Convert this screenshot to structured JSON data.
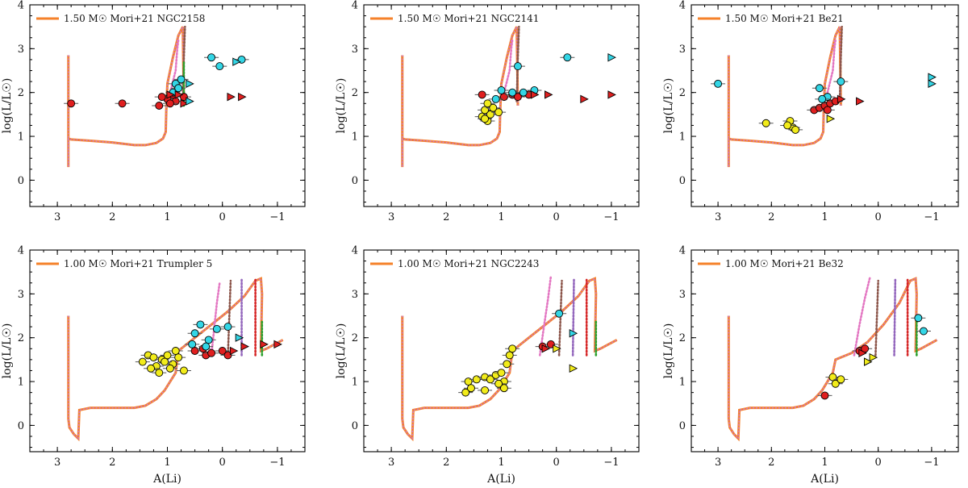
{
  "figure": {
    "shared_xlabel": "A(Li)",
    "shared_ylabel": "log(L/L☉)"
  },
  "colors": {
    "track": "#f5812a",
    "track_dash": "#c778d8",
    "pink": "#e377c2",
    "brown": "#8c564b",
    "purple": "#9467bd",
    "red": "#d62728",
    "green": "#2ca02c",
    "cyan": "#33d6e6",
    "yellow": "#f2ec1a",
    "redpt": "#e01f1f"
  },
  "chart_data": [
    {
      "type": "scatter",
      "legend": "1.50 M☉ Mori+21 NGC2158",
      "xlabel": "",
      "ylabel": "log(L/L☉)",
      "xlim": [
        3.5,
        -1.5
      ],
      "ylim": [
        -0.6,
        4
      ],
      "track": {
        "x": [
          2.8,
          2.8,
          2.8,
          2.75,
          2.4,
          2.0,
          1.6,
          1.4,
          1.2,
          1.08,
          1.03,
          1.02,
          1.0,
          0.9,
          0.8,
          0.72,
          0.7
        ],
        "y": [
          2.85,
          0.3,
          0.95,
          0.93,
          0.9,
          0.86,
          0.8,
          0.8,
          0.85,
          0.95,
          1.1,
          1.6,
          2.2,
          2.8,
          3.3,
          3.5,
          1.7
        ]
      },
      "dotted_tracks": [
        {
          "color": "pink",
          "x": [
            0.95,
            0.85,
            0.82,
            0.8
          ],
          "y": [
            2.0,
            2.5,
            3.0,
            3.2
          ]
        },
        {
          "color": "brown",
          "x": [
            0.72,
            0.7,
            0.68
          ],
          "y": [
            1.8,
            2.8,
            3.5
          ]
        },
        {
          "color": "green",
          "x": [
            0.7,
            0.7
          ],
          "y": [
            1.7,
            2.7
          ]
        }
      ],
      "cyan_circles": [
        [
          0.2,
          2.8
        ],
        [
          0.05,
          2.6
        ],
        [
          -0.35,
          2.75
        ],
        [
          0.85,
          2.2
        ],
        [
          0.8,
          2.1
        ],
        [
          0.75,
          2.3
        ],
        [
          0.9,
          2.0
        ]
      ],
      "yellow_circles": [],
      "red_circles": [
        [
          2.75,
          1.75
        ],
        [
          1.82,
          1.75
        ],
        [
          1.15,
          1.7
        ],
        [
          1.0,
          1.85
        ],
        [
          0.9,
          1.95
        ],
        [
          0.85,
          1.8
        ],
        [
          0.7,
          1.9
        ],
        [
          0.95,
          1.75
        ],
        [
          1.1,
          1.9
        ]
      ],
      "cyan_triangles": [
        [
          0.6,
          2.2
        ],
        [
          -0.25,
          2.7
        ],
        [
          0.6,
          1.8
        ]
      ],
      "yellow_triangles": [],
      "red_triangles": [
        [
          0.95,
          1.95
        ],
        [
          0.8,
          1.95
        ],
        [
          -0.15,
          1.9
        ],
        [
          -0.35,
          1.9
        ],
        [
          0.7,
          1.75
        ]
      ],
      "xticks": [
        "3",
        "2",
        "1",
        "0",
        "−1"
      ],
      "yticks": [
        "0",
        "1",
        "2",
        "3",
        "4"
      ]
    },
    {
      "type": "scatter",
      "legend": "1.50 M☉ Mori+21 NGC2141",
      "xlabel": "",
      "ylabel": "log(L/L☉)",
      "xlim": [
        3.5,
        -1.5
      ],
      "ylim": [
        -0.6,
        4
      ],
      "track": {
        "x": [
          2.8,
          2.8,
          2.8,
          2.75,
          2.4,
          2.0,
          1.6,
          1.4,
          1.2,
          1.08,
          1.03,
          1.02,
          1.0,
          0.9,
          0.8,
          0.72,
          0.7
        ],
        "y": [
          2.85,
          0.3,
          0.95,
          0.93,
          0.9,
          0.86,
          0.8,
          0.8,
          0.85,
          0.95,
          1.1,
          1.6,
          2.2,
          2.8,
          3.3,
          3.5,
          1.7
        ]
      },
      "dotted_tracks": [
        {
          "color": "pink",
          "x": [
            0.95,
            0.85,
            0.82,
            0.8
          ],
          "y": [
            2.0,
            2.5,
            3.0,
            3.2
          ]
        },
        {
          "color": "brown",
          "x": [
            0.72,
            0.7,
            0.68
          ],
          "y": [
            1.8,
            2.8,
            3.5
          ]
        }
      ],
      "cyan_circles": [
        [
          0.7,
          2.6
        ],
        [
          1.1,
          1.85
        ],
        [
          1.0,
          2.05
        ],
        [
          0.8,
          2.0
        ],
        [
          0.6,
          2.0
        ],
        [
          0.4,
          2.05
        ],
        [
          -0.2,
          2.8
        ]
      ],
      "yellow_circles": [
        [
          1.35,
          1.45
        ],
        [
          1.25,
          1.35
        ],
        [
          1.2,
          1.5
        ],
        [
          1.3,
          1.6
        ],
        [
          1.15,
          1.65
        ],
        [
          1.05,
          1.55
        ],
        [
          1.3,
          1.4
        ],
        [
          1.25,
          1.75
        ]
      ],
      "red_circles": [
        [
          1.35,
          1.95
        ],
        [
          0.95,
          1.9
        ],
        [
          0.8,
          1.95
        ],
        [
          0.7,
          1.9
        ],
        [
          0.5,
          1.95
        ]
      ],
      "cyan_triangles": [
        [
          -1.0,
          2.8
        ]
      ],
      "yellow_triangles": [],
      "red_triangles": [
        [
          0.15,
          1.95
        ],
        [
          -0.5,
          1.85
        ],
        [
          -1.0,
          1.95
        ],
        [
          0.4,
          1.95
        ]
      ],
      "xticks": [
        "3",
        "2",
        "1",
        "0",
        "−1"
      ],
      "yticks": [
        "0",
        "1",
        "2",
        "3",
        "4"
      ]
    },
    {
      "type": "scatter",
      "legend": "1.50 M☉ Mori+21 Be21",
      "xlabel": "",
      "ylabel": "log(L/L☉)",
      "xlim": [
        3.5,
        -1.5
      ],
      "ylim": [
        -0.6,
        4
      ],
      "track": {
        "x": [
          2.8,
          2.8,
          2.8,
          2.75,
          2.4,
          2.0,
          1.6,
          1.4,
          1.2,
          1.08,
          1.03,
          1.02,
          1.0,
          0.9,
          0.8,
          0.72,
          0.7
        ],
        "y": [
          2.85,
          0.3,
          0.95,
          0.93,
          0.9,
          0.86,
          0.8,
          0.8,
          0.85,
          0.95,
          1.1,
          1.6,
          2.2,
          2.8,
          3.3,
          3.5,
          1.7
        ]
      },
      "dotted_tracks": [
        {
          "color": "pink",
          "x": [
            0.95,
            0.85,
            0.82,
            0.8
          ],
          "y": [
            2.0,
            2.5,
            3.0,
            3.2
          ]
        },
        {
          "color": "brown",
          "x": [
            0.72,
            0.7,
            0.68
          ],
          "y": [
            1.8,
            2.8,
            3.5
          ]
        }
      ],
      "cyan_circles": [
        [
          3.0,
          2.2
        ],
        [
          1.1,
          2.1
        ],
        [
          0.95,
          1.9
        ],
        [
          0.7,
          2.25
        ],
        [
          1.05,
          1.85
        ]
      ],
      "yellow_circles": [
        [
          2.1,
          1.3
        ],
        [
          1.65,
          1.35
        ],
        [
          1.6,
          1.2
        ],
        [
          1.55,
          1.15
        ],
        [
          1.7,
          1.25
        ]
      ],
      "red_circles": [
        [
          1.2,
          1.6
        ],
        [
          1.1,
          1.65
        ],
        [
          1.0,
          1.7
        ],
        [
          0.9,
          1.75
        ],
        [
          0.8,
          1.8
        ],
        [
          0.95,
          1.6
        ]
      ],
      "cyan_triangles": [
        [
          -1.0,
          2.35
        ],
        [
          -1.0,
          2.2
        ]
      ],
      "yellow_triangles": [
        [
          0.9,
          1.4
        ]
      ],
      "red_triangles": [
        [
          0.7,
          1.85
        ],
        [
          0.35,
          1.8
        ]
      ],
      "xticks": [
        "3",
        "2",
        "1",
        "0",
        "−1"
      ],
      "yticks": [
        "0",
        "1",
        "2",
        "3",
        "4"
      ]
    },
    {
      "type": "scatter",
      "legend": "1.00 M☉ Mori+21 Trumpler 5",
      "xlabel": "A(Li)",
      "ylabel": "log(L/L☉)",
      "xlim": [
        3.5,
        -1.5
      ],
      "ylim": [
        -0.6,
        4
      ],
      "track": {
        "x": [
          2.8,
          2.8,
          2.78,
          2.7,
          2.62,
          2.6,
          2.4,
          2.0,
          1.6,
          1.4,
          1.2,
          1.05,
          0.95,
          0.85,
          0.8,
          0.5,
          0.2,
          -0.1,
          -0.4,
          -0.6,
          -0.7,
          -0.72,
          -0.7,
          -0.8,
          -0.95,
          -1.1
        ],
        "y": [
          2.5,
          0.15,
          -0.05,
          -0.2,
          -0.3,
          0.35,
          0.4,
          0.4,
          0.4,
          0.45,
          0.6,
          0.8,
          1.0,
          1.2,
          1.7,
          2.0,
          2.3,
          2.6,
          2.95,
          3.3,
          3.35,
          3.0,
          1.7,
          1.75,
          1.85,
          1.95
        ]
      },
      "dotted_tracks": [
        {
          "color": "pink",
          "x": [
            0.2,
            0.15,
            0.1,
            0.05
          ],
          "y": [
            1.6,
            2.2,
            2.8,
            3.25
          ]
        },
        {
          "color": "brown",
          "x": [
            -0.1,
            -0.15
          ],
          "y": [
            1.6,
            3.3
          ]
        },
        {
          "color": "purple",
          "x": [
            -0.35,
            -0.35
          ],
          "y": [
            1.6,
            3.35
          ]
        },
        {
          "color": "red",
          "x": [
            -0.6,
            -0.6
          ],
          "y": [
            1.6,
            3.35
          ]
        },
        {
          "color": "green",
          "x": [
            -0.72,
            -0.72
          ],
          "y": [
            1.6,
            2.4
          ]
        }
      ],
      "cyan_circles": [
        [
          0.5,
          2.1
        ],
        [
          0.4,
          2.3
        ],
        [
          0.55,
          1.85
        ],
        [
          0.25,
          1.95
        ],
        [
          0.1,
          2.2
        ],
        [
          -0.1,
          2.25
        ],
        [
          0.3,
          1.8
        ]
      ],
      "yellow_circles": [
        [
          1.45,
          1.45
        ],
        [
          1.35,
          1.6
        ],
        [
          1.25,
          1.55
        ],
        [
          1.2,
          1.35
        ],
        [
          1.1,
          1.5
        ],
        [
          1.0,
          1.6
        ],
        [
          0.9,
          1.4
        ],
        [
          0.8,
          1.55
        ],
        [
          0.7,
          1.25
        ],
        [
          1.15,
          1.2
        ],
        [
          1.3,
          1.3
        ],
        [
          0.95,
          1.3
        ],
        [
          0.85,
          1.7
        ],
        [
          1.05,
          1.45
        ]
      ],
      "red_circles": [
        [
          0.5,
          1.7
        ],
        [
          0.35,
          1.75
        ],
        [
          0.3,
          1.6
        ],
        [
          0.2,
          1.65
        ],
        [
          0.0,
          1.7
        ],
        [
          -0.1,
          1.6
        ]
      ],
      "cyan_triangles": [
        [
          -0.3,
          2.0
        ]
      ],
      "yellow_triangles": [],
      "red_triangles": [
        [
          -0.2,
          1.7
        ],
        [
          -0.4,
          1.8
        ],
        [
          -0.75,
          1.85
        ],
        [
          -1.0,
          1.85
        ]
      ],
      "xticks": [
        "3",
        "2",
        "1",
        "0",
        "−1"
      ],
      "yticks": [
        "0",
        "1",
        "2",
        "3",
        "4"
      ]
    },
    {
      "type": "scatter",
      "legend": "1.00 M☉ Mori+21 NGC2243",
      "xlabel": "A(Li)",
      "ylabel": "log(L/L☉)",
      "xlim": [
        3.5,
        -1.5
      ],
      "ylim": [
        -0.6,
        4
      ],
      "track": {
        "x": [
          2.8,
          2.8,
          2.78,
          2.7,
          2.62,
          2.6,
          2.4,
          2.0,
          1.6,
          1.4,
          1.2,
          1.05,
          0.95,
          0.85,
          0.8,
          0.5,
          0.2,
          -0.1,
          -0.4,
          -0.6,
          -0.7,
          -0.72,
          -0.7,
          -0.8,
          -0.95,
          -1.1
        ],
        "y": [
          2.5,
          0.15,
          -0.05,
          -0.2,
          -0.3,
          0.35,
          0.4,
          0.4,
          0.4,
          0.45,
          0.6,
          0.8,
          1.0,
          1.2,
          1.7,
          2.0,
          2.3,
          2.6,
          2.95,
          3.3,
          3.35,
          3.0,
          1.7,
          1.75,
          1.85,
          1.95
        ]
      },
      "dotted_tracks": [
        {
          "color": "pink",
          "x": [
            0.3,
            0.22,
            0.15,
            0.1
          ],
          "y": [
            1.6,
            2.3,
            2.9,
            3.4
          ]
        },
        {
          "color": "brown",
          "x": [
            -0.05,
            -0.1
          ],
          "y": [
            1.6,
            3.3
          ]
        },
        {
          "color": "purple",
          "x": [
            -0.3,
            -0.32
          ],
          "y": [
            1.6,
            3.35
          ]
        },
        {
          "color": "red",
          "x": [
            -0.55,
            -0.55
          ],
          "y": [
            1.6,
            3.35
          ]
        },
        {
          "color": "green",
          "x": [
            -0.72,
            -0.72
          ],
          "y": [
            1.6,
            2.4
          ]
        }
      ],
      "cyan_circles": [
        [
          -0.05,
          2.55
        ]
      ],
      "yellow_circles": [
        [
          1.6,
          1.0
        ],
        [
          1.45,
          1.05
        ],
        [
          1.3,
          1.1
        ],
        [
          1.2,
          1.05
        ],
        [
          1.1,
          1.15
        ],
        [
          1.0,
          1.2
        ],
        [
          0.95,
          1.0
        ],
        [
          0.9,
          1.4
        ],
        [
          0.85,
          1.6
        ],
        [
          0.8,
          1.75
        ],
        [
          1.65,
          0.75
        ],
        [
          1.55,
          0.85
        ],
        [
          1.3,
          0.8
        ],
        [
          1.05,
          0.95
        ],
        [
          0.95,
          0.85
        ]
      ],
      "red_circles": [
        [
          0.25,
          1.8
        ],
        [
          0.1,
          1.85
        ]
      ],
      "cyan_triangles": [
        [
          -0.3,
          2.1
        ]
      ],
      "yellow_triangles": [
        [
          0.0,
          1.75
        ],
        [
          -0.3,
          1.3
        ]
      ],
      "red_triangles": [
        [
          0.2,
          1.75
        ]
      ],
      "xticks": [
        "3",
        "2",
        "1",
        "0",
        "−1"
      ],
      "yticks": [
        "0",
        "1",
        "2",
        "3",
        "4"
      ]
    },
    {
      "type": "scatter",
      "legend": "1.00 M☉ Mori+21 Be32",
      "xlabel": "A(Li)",
      "ylabel": "log(L/L☉)",
      "xlim": [
        3.5,
        -1.5
      ],
      "ylim": [
        -0.6,
        4
      ],
      "track": {
        "x": [
          2.8,
          2.8,
          2.78,
          2.7,
          2.62,
          2.6,
          2.4,
          2.0,
          1.6,
          1.4,
          1.2,
          1.05,
          0.95,
          0.85,
          0.8,
          0.5,
          0.2,
          -0.1,
          -0.4,
          -0.6,
          -0.7,
          -0.72,
          -0.7,
          -0.8,
          -0.95,
          -1.1
        ],
        "y": [
          2.5,
          0.15,
          -0.05,
          -0.2,
          -0.3,
          0.35,
          0.4,
          0.4,
          0.4,
          0.45,
          0.6,
          0.8,
          1.0,
          1.2,
          1.5,
          1.65,
          1.9,
          2.3,
          2.8,
          3.3,
          3.35,
          3.0,
          1.7,
          1.75,
          1.85,
          1.95
        ]
      },
      "dotted_tracks": [
        {
          "color": "pink",
          "x": [
            0.45,
            0.35,
            0.25,
            0.15
          ],
          "y": [
            1.6,
            2.3,
            2.9,
            3.4
          ]
        },
        {
          "color": "brown",
          "x": [
            0.05,
            0.0
          ],
          "y": [
            1.6,
            3.3
          ]
        },
        {
          "color": "purple",
          "x": [
            -0.3,
            -0.32
          ],
          "y": [
            1.6,
            3.35
          ]
        },
        {
          "color": "red",
          "x": [
            -0.55,
            -0.55
          ],
          "y": [
            1.6,
            3.35
          ]
        },
        {
          "color": "green",
          "x": [
            -0.72,
            -0.72
          ],
          "y": [
            1.6,
            2.4
          ]
        }
      ],
      "cyan_circles": [
        [
          -0.75,
          2.45
        ],
        [
          -0.85,
          2.15
        ]
      ],
      "yellow_circles": [
        [
          0.85,
          1.1
        ],
        [
          0.8,
          0.95
        ],
        [
          0.7,
          1.05
        ]
      ],
      "red_circles": [
        [
          1.0,
          0.68
        ],
        [
          0.35,
          1.7
        ],
        [
          0.25,
          1.75
        ]
      ],
      "cyan_triangles": [],
      "yellow_triangles": [
        [
          0.2,
          1.45
        ],
        [
          0.1,
          1.55
        ]
      ],
      "red_triangles": [
        [
          0.3,
          1.65
        ]
      ],
      "xticks": [
        "3",
        "2",
        "1",
        "0",
        "−1"
      ],
      "yticks": [
        "0",
        "1",
        "2",
        "3",
        "4"
      ]
    }
  ]
}
